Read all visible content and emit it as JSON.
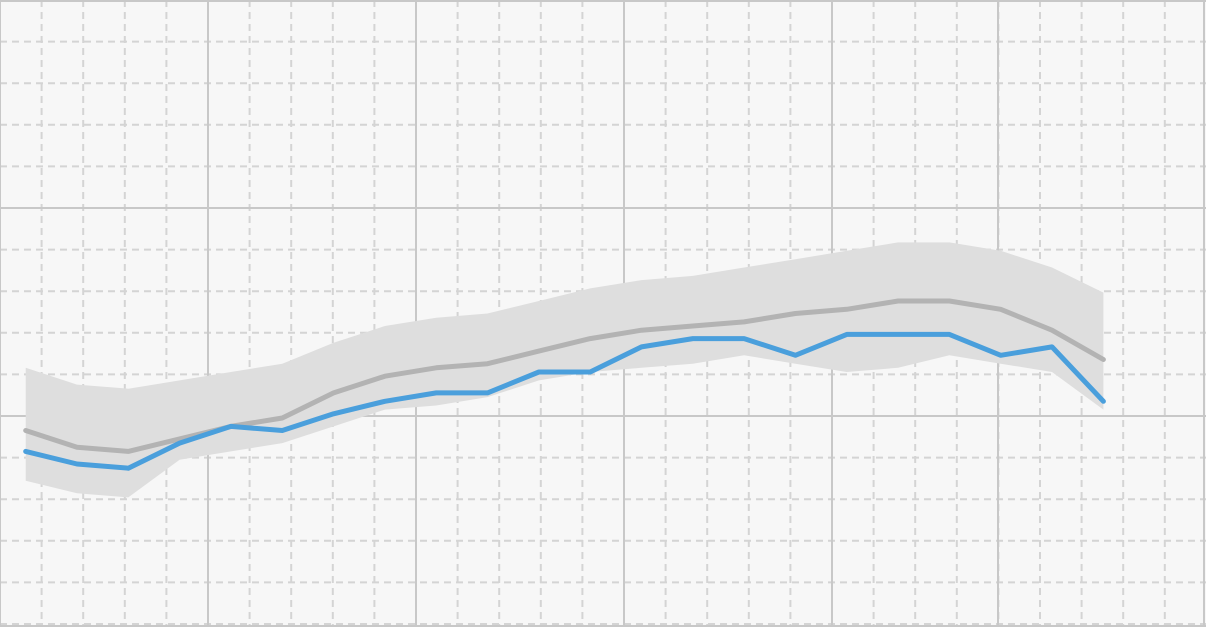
{
  "chart_data": {
    "type": "line",
    "title": "",
    "xlabel": "",
    "ylabel": "",
    "grid": true,
    "legend": "none",
    "x": [
      1,
      2,
      3,
      4,
      5,
      6,
      7,
      8,
      9,
      10,
      11,
      12,
      13,
      14,
      15,
      16,
      17,
      18,
      19,
      20,
      21,
      22
    ],
    "xlim": [
      0.5,
      24
    ],
    "ylim": [
      0,
      15
    ],
    "series": [
      {
        "role": "range-band",
        "color": "#dedede",
        "upper": [
          6.2,
          5.8,
          5.7,
          5.9,
          6.1,
          6.3,
          6.8,
          7.2,
          7.4,
          7.5,
          7.8,
          8.1,
          8.3,
          8.4,
          8.6,
          8.8,
          9.0,
          9.2,
          9.2,
          9.0,
          8.6,
          8.0
        ],
        "lower": [
          3.5,
          3.2,
          3.1,
          4.0,
          4.2,
          4.4,
          4.8,
          5.2,
          5.3,
          5.5,
          5.9,
          6.1,
          6.2,
          6.3,
          6.5,
          6.3,
          6.1,
          6.2,
          6.5,
          6.3,
          6.1,
          5.2
        ]
      },
      {
        "role": "average",
        "color": "#b3b3b3",
        "values": [
          4.7,
          4.3,
          4.2,
          4.5,
          4.8,
          5.0,
          5.6,
          6.0,
          6.2,
          6.3,
          6.6,
          6.9,
          7.1,
          7.2,
          7.3,
          7.5,
          7.6,
          7.8,
          7.8,
          7.6,
          7.1,
          6.4
        ]
      },
      {
        "role": "value",
        "color": "#4a9fdc",
        "values": [
          4.2,
          3.9,
          3.8,
          4.4,
          4.8,
          4.7,
          5.1,
          5.4,
          5.6,
          5.6,
          6.1,
          6.1,
          6.7,
          6.9,
          6.9,
          6.5,
          7.0,
          7.0,
          7.0,
          6.5,
          6.7,
          5.4
        ]
      }
    ]
  }
}
